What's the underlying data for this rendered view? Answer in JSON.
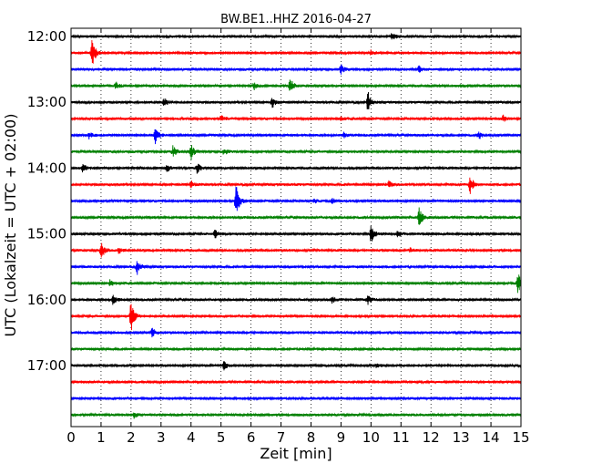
{
  "chart_data": {
    "type": "line",
    "title": "BW.BE1..HHZ 2016-04-27",
    "xlabel": "Zeit  [min]",
    "ylabel": "UTC (Lokalzeit = UTC + 02:00)",
    "xlim": [
      0,
      15
    ],
    "x_ticks": [
      "0",
      "1",
      "2",
      "3",
      "4",
      "5",
      "6",
      "7",
      "8",
      "9",
      "10",
      "11",
      "12",
      "13",
      "14",
      "15"
    ],
    "y_tick_labels": [
      "12:00",
      "13:00",
      "14:00",
      "15:00",
      "16:00",
      "17:00"
    ],
    "grid": true,
    "colors": [
      "#000000",
      "#ff0000",
      "#0000ff",
      "#008000"
    ],
    "traces": [
      {
        "start": "12:00",
        "color": "#000000",
        "events": [
          {
            "t": 10.7,
            "a": 0.4
          }
        ]
      },
      {
        "start": "12:15",
        "color": "#ff0000",
        "events": [
          {
            "t": 0.7,
            "a": 1.3
          },
          {
            "t": 10.0,
            "a": 0.2
          }
        ]
      },
      {
        "start": "12:30",
        "color": "#0000ff",
        "events": [
          {
            "t": 9.0,
            "a": 0.4
          },
          {
            "t": 11.6,
            "a": 0.3
          }
        ]
      },
      {
        "start": "12:45",
        "color": "#008000",
        "events": [
          {
            "t": 1.5,
            "a": 0.3
          },
          {
            "t": 6.1,
            "a": 0.3
          },
          {
            "t": 7.3,
            "a": 0.7
          }
        ]
      },
      {
        "start": "13:00",
        "color": "#000000",
        "events": [
          {
            "t": 3.1,
            "a": 0.4
          },
          {
            "t": 6.7,
            "a": 0.5
          },
          {
            "t": 9.9,
            "a": 0.9
          }
        ]
      },
      {
        "start": "13:15",
        "color": "#ff0000",
        "events": [
          {
            "t": 5.0,
            "a": 0.3
          },
          {
            "t": 9.0,
            "a": 0.2
          },
          {
            "t": 14.4,
            "a": 0.3
          }
        ]
      },
      {
        "start": "13:30",
        "color": "#0000ff",
        "events": [
          {
            "t": 0.6,
            "a": 0.3
          },
          {
            "t": 2.8,
            "a": 0.8
          },
          {
            "t": 9.1,
            "a": 0.2
          },
          {
            "t": 13.6,
            "a": 0.3
          }
        ]
      },
      {
        "start": "13:45",
        "color": "#008000",
        "events": [
          {
            "t": 3.4,
            "a": 0.5
          },
          {
            "t": 4.0,
            "a": 0.7
          },
          {
            "t": 5.1,
            "a": 0.3
          }
        ]
      },
      {
        "start": "14:00",
        "color": "#000000",
        "events": [
          {
            "t": 0.4,
            "a": 0.4
          },
          {
            "t": 3.2,
            "a": 0.3
          },
          {
            "t": 4.2,
            "a": 0.5
          }
        ]
      },
      {
        "start": "14:15",
        "color": "#ff0000",
        "events": [
          {
            "t": 4.0,
            "a": 0.3
          },
          {
            "t": 10.6,
            "a": 0.3
          },
          {
            "t": 13.3,
            "a": 0.8
          }
        ]
      },
      {
        "start": "14:30",
        "color": "#0000ff",
        "events": [
          {
            "t": 5.5,
            "a": 1.4
          },
          {
            "t": 8.1,
            "a": 0.2
          },
          {
            "t": 8.7,
            "a": 0.2
          }
        ]
      },
      {
        "start": "14:45",
        "color": "#008000",
        "events": [
          {
            "t": 11.6,
            "a": 1.0
          }
        ]
      },
      {
        "start": "15:00",
        "color": "#000000",
        "events": [
          {
            "t": 4.8,
            "a": 0.4
          },
          {
            "t": 10.0,
            "a": 0.8
          },
          {
            "t": 10.9,
            "a": 0.3
          }
        ]
      },
      {
        "start": "15:15",
        "color": "#ff0000",
        "events": [
          {
            "t": 1.0,
            "a": 0.8
          },
          {
            "t": 1.6,
            "a": 0.3
          },
          {
            "t": 11.3,
            "a": 0.2
          }
        ]
      },
      {
        "start": "15:30",
        "color": "#0000ff",
        "events": [
          {
            "t": 2.2,
            "a": 0.7
          }
        ]
      },
      {
        "start": "15:45",
        "color": "#008000",
        "events": [
          {
            "t": 1.3,
            "a": 0.3
          },
          {
            "t": 14.9,
            "a": 1.0
          }
        ]
      },
      {
        "start": "16:00",
        "color": "#000000",
        "events": [
          {
            "t": 1.4,
            "a": 0.4
          },
          {
            "t": 8.7,
            "a": 0.3
          },
          {
            "t": 9.9,
            "a": 0.4
          }
        ]
      },
      {
        "start": "16:15",
        "color": "#ff0000",
        "events": [
          {
            "t": 2.0,
            "a": 1.4
          }
        ]
      },
      {
        "start": "16:30",
        "color": "#0000ff",
        "events": [
          {
            "t": 2.7,
            "a": 0.4
          }
        ]
      },
      {
        "start": "16:45",
        "color": "#008000",
        "events": []
      },
      {
        "start": "17:00",
        "color": "#000000",
        "events": [
          {
            "t": 5.1,
            "a": 0.4
          },
          {
            "t": 10.2,
            "a": 0.2
          }
        ]
      },
      {
        "start": "17:15",
        "color": "#ff0000",
        "events": []
      },
      {
        "start": "17:30",
        "color": "#0000ff",
        "events": []
      },
      {
        "start": "17:45",
        "color": "#008000",
        "events": [
          {
            "t": 2.1,
            "a": 0.3
          }
        ]
      }
    ]
  }
}
